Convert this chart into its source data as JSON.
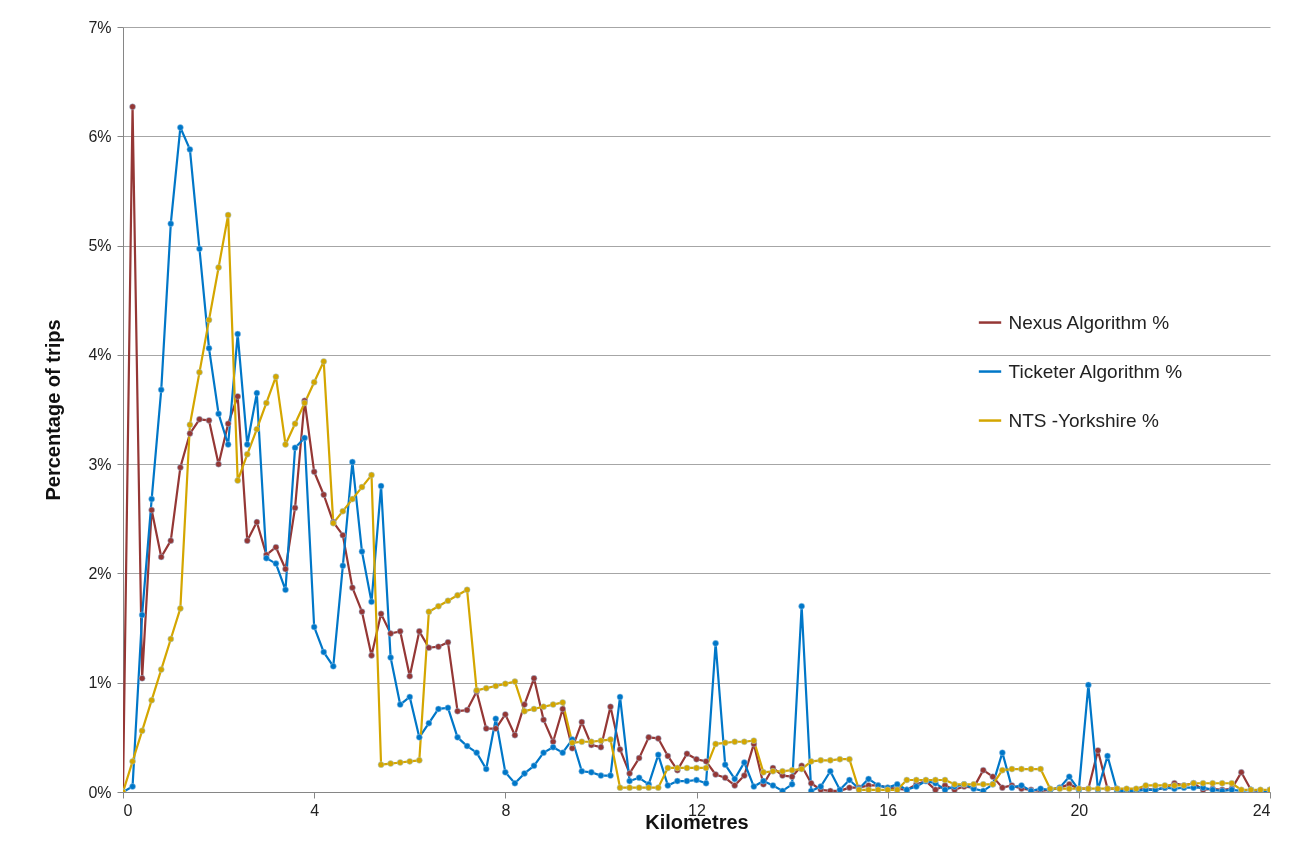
{
  "chart_data": {
    "type": "line",
    "xlabel": "Kilometres",
    "ylabel": "Percentage of trips",
    "x": [
      0,
      0.2,
      0.4,
      0.6,
      0.8,
      1,
      1.2,
      1.4,
      1.6,
      1.8,
      2,
      2.2,
      2.4,
      2.6,
      2.8,
      3,
      3.2,
      3.4,
      3.6,
      3.8,
      4,
      4.2,
      4.4,
      4.6,
      4.8,
      5,
      5.2,
      5.4,
      5.6,
      5.8,
      6,
      6.2,
      6.4,
      6.6,
      6.8,
      7,
      7.2,
      7.4,
      7.6,
      7.8,
      8,
      8.2,
      8.4,
      8.6,
      8.8,
      9,
      9.2,
      9.4,
      9.6,
      9.8,
      10,
      10.2,
      10.4,
      10.6,
      10.8,
      11,
      11.2,
      11.4,
      11.6,
      11.8,
      12,
      12.2,
      12.4,
      12.6,
      12.8,
      13,
      13.2,
      13.4,
      13.6,
      13.8,
      14,
      14.2,
      14.4,
      14.6,
      14.8,
      15,
      15.2,
      15.4,
      15.6,
      15.8,
      16,
      16.2,
      16.4,
      16.6,
      16.8,
      17,
      17.2,
      17.4,
      17.6,
      17.8,
      18,
      18.2,
      18.4,
      18.6,
      18.8,
      19,
      19.2,
      19.4,
      19.6,
      19.8,
      20,
      20.2,
      20.4,
      20.6,
      20.8,
      21,
      21.2,
      21.4,
      21.6,
      21.8,
      22,
      22.2,
      22.4,
      22.6,
      22.8,
      23,
      23.2,
      23.4,
      23.6,
      23.8,
      24
    ],
    "series": [
      {
        "name": "Nexus Algorithm %",
        "color": "#953735",
        "values": [
          0,
          6.27,
          1.04,
          2.58,
          2.15,
          2.3,
          2.97,
          3.28,
          3.41,
          3.4,
          3.0,
          3.37,
          3.62,
          2.3,
          2.47,
          2.17,
          2.24,
          2.04,
          2.6,
          3.58,
          2.93,
          2.72,
          2.47,
          2.35,
          1.87,
          1.65,
          1.25,
          1.63,
          1.45,
          1.47,
          1.06,
          1.47,
          1.32,
          1.33,
          1.37,
          0.74,
          0.75,
          0.92,
          0.58,
          0.58,
          0.71,
          0.52,
          0.8,
          1.04,
          0.66,
          0.46,
          0.76,
          0.4,
          0.64,
          0.43,
          0.41,
          0.78,
          0.39,
          0.17,
          0.31,
          0.5,
          0.49,
          0.33,
          0.2,
          0.35,
          0.3,
          0.28,
          0.16,
          0.13,
          0.06,
          0.15,
          0.44,
          0.07,
          0.22,
          0.15,
          0.14,
          0.24,
          0.08,
          0.02,
          0.01,
          0.01,
          0.04,
          0.04,
          0.06,
          0.06,
          0.04,
          0.03,
          0.02,
          0.07,
          0.1,
          0.02,
          0.06,
          0.02,
          0.05,
          0.04,
          0.2,
          0.14,
          0.04,
          0.06,
          0.03,
          0.02,
          0.01,
          0.02,
          0.04,
          0.07,
          0.03,
          0.03,
          0.38,
          0.03,
          0.03,
          0.02,
          0.02,
          0.03,
          0.02,
          0.04,
          0.08,
          0.06,
          0.08,
          0.02,
          0.03,
          0.02,
          0.03,
          0.18,
          0.02,
          0.01,
          0.02
        ]
      },
      {
        "name": "Ticketer Algorithm %",
        "color": "#0077c8",
        "values": [
          0,
          0.05,
          1.62,
          2.68,
          3.68,
          5.2,
          6.08,
          5.88,
          4.97,
          4.06,
          3.46,
          3.18,
          4.19,
          3.18,
          3.65,
          2.14,
          2.09,
          1.85,
          3.15,
          3.24,
          1.51,
          1.28,
          1.15,
          2.07,
          3.02,
          2.2,
          1.74,
          2.8,
          1.23,
          0.8,
          0.87,
          0.5,
          0.63,
          0.76,
          0.77,
          0.5,
          0.42,
          0.36,
          0.21,
          0.67,
          0.18,
          0.08,
          0.17,
          0.24,
          0.36,
          0.41,
          0.36,
          0.48,
          0.19,
          0.18,
          0.15,
          0.15,
          0.87,
          0.1,
          0.13,
          0.07,
          0.34,
          0.06,
          0.1,
          0.1,
          0.11,
          0.08,
          1.36,
          0.25,
          0.12,
          0.27,
          0.05,
          0.1,
          0.06,
          0.01,
          0.07,
          1.7,
          0.01,
          0.05,
          0.19,
          0.02,
          0.11,
          0.03,
          0.12,
          0.06,
          0.04,
          0.07,
          0.02,
          0.05,
          0.1,
          0.08,
          0.02,
          0.05,
          0.07,
          0.03,
          0.01,
          0.07,
          0.36,
          0.04,
          0.06,
          0.01,
          0.03,
          0.02,
          0.04,
          0.14,
          0.02,
          0.98,
          0.02,
          0.33,
          0.01,
          0.01,
          0.01,
          0.02,
          0.02,
          0.04,
          0.03,
          0.04,
          0.04,
          0.04,
          0.02,
          0.01,
          0.02,
          0.01,
          0.02,
          0.01,
          0.01
        ]
      },
      {
        "name": "NTS -Yorkshire %",
        "color": "#d4a600",
        "values": [
          0,
          0.28,
          0.56,
          0.84,
          1.12,
          1.4,
          1.68,
          3.36,
          3.84,
          4.32,
          4.8,
          5.28,
          2.85,
          3.09,
          3.32,
          3.56,
          3.8,
          3.18,
          3.37,
          3.56,
          3.75,
          3.94,
          2.46,
          2.57,
          2.68,
          2.79,
          2.9,
          0.25,
          0.26,
          0.27,
          0.28,
          0.29,
          1.65,
          1.7,
          1.75,
          1.8,
          1.85,
          0.93,
          0.95,
          0.97,
          0.99,
          1.01,
          0.74,
          0.76,
          0.78,
          0.8,
          0.82,
          0.45,
          0.46,
          0.46,
          0.47,
          0.48,
          0.04,
          0.04,
          0.04,
          0.04,
          0.04,
          0.22,
          0.22,
          0.22,
          0.22,
          0.22,
          0.44,
          0.45,
          0.46,
          0.46,
          0.47,
          0.18,
          0.19,
          0.19,
          0.2,
          0.21,
          0.28,
          0.29,
          0.29,
          0.3,
          0.3,
          0.02,
          0.02,
          0.02,
          0.02,
          0.02,
          0.11,
          0.11,
          0.11,
          0.11,
          0.11,
          0.07,
          0.07,
          0.07,
          0.07,
          0.07,
          0.2,
          0.21,
          0.21,
          0.21,
          0.21,
          0.03,
          0.03,
          0.03,
          0.03,
          0.03,
          0.03,
          0.03,
          0.03,
          0.03,
          0.03,
          0.06,
          0.06,
          0.06,
          0.06,
          0.06,
          0.08,
          0.08,
          0.08,
          0.08,
          0.08,
          0.02,
          0.02,
          0.02,
          0.02
        ]
      }
    ],
    "xlim": [
      0,
      24
    ],
    "xticks": [
      0,
      4,
      8,
      12,
      16,
      20,
      24
    ],
    "ylim": [
      0,
      7
    ],
    "yticks": [
      {
        "value": 0,
        "label": "0%"
      },
      {
        "value": 1,
        "label": "1%"
      },
      {
        "value": 2,
        "label": "2%"
      },
      {
        "value": 3,
        "label": "3%"
      },
      {
        "value": 4,
        "label": "4%"
      },
      {
        "value": 5,
        "label": "5%"
      },
      {
        "value": 6,
        "label": "6%"
      },
      {
        "value": 7,
        "label": "7%"
      }
    ],
    "grid": "y",
    "legend": "right",
    "marker": "circle"
  }
}
